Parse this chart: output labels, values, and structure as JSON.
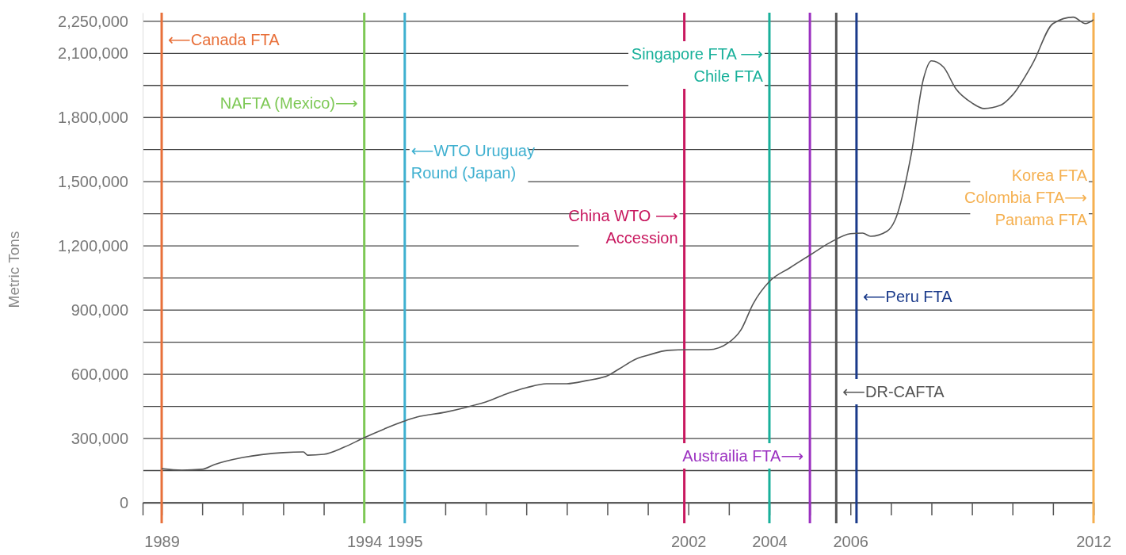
{
  "chart_data": {
    "type": "line",
    "ylabel": "Metric Tons",
    "xlim": [
      1988.53,
      2012
    ],
    "xticks": [
      1989,
      {
        "value": 1990,
        "label": null
      },
      {
        "value": 1991,
        "label": null
      },
      {
        "value": 1992,
        "label": null
      },
      {
        "value": 1993,
        "label": null
      },
      1994,
      1995,
      {
        "value": 1996,
        "label": null
      },
      {
        "value": 1997,
        "label": null
      },
      {
        "value": 1998,
        "label": null
      },
      {
        "value": 1999,
        "label": null
      },
      {
        "value": 2000,
        "label": null
      },
      {
        "value": 2001,
        "label": null
      },
      2002,
      {
        "value": 2003,
        "label": null
      },
      2004,
      {
        "value": 2005,
        "label": null
      },
      2006,
      {
        "value": 2007,
        "label": null
      },
      {
        "value": 2008,
        "label": null
      },
      {
        "value": 2009,
        "label": null
      },
      {
        "value": 2010,
        "label": null
      },
      {
        "value": 2011,
        "label": null
      },
      2012
    ],
    "ylim": [
      0,
      2290000
    ],
    "yticks": [
      {
        "value": 0,
        "label": "0"
      },
      {
        "value": 150000,
        "label": null
      },
      {
        "value": 300000,
        "label": "300,000"
      },
      {
        "value": 450000,
        "label": null
      },
      {
        "value": 600000,
        "label": "600,000"
      },
      {
        "value": 750000,
        "label": null
      },
      {
        "value": 900000,
        "label": "900,000"
      },
      {
        "value": 1050000,
        "label": null
      },
      {
        "value": 1200000,
        "label": "1,200,000"
      },
      {
        "value": 1350000,
        "label": null
      },
      {
        "value": 1500000,
        "label": "1,500,000"
      },
      {
        "value": 1650000,
        "label": null
      },
      {
        "value": 1800000,
        "label": "1,800,000"
      },
      {
        "value": 1950000,
        "label": null
      },
      {
        "value": 2100000,
        "label": "2,100,000"
      },
      {
        "value": 2250000,
        "label": "2,250,000"
      }
    ],
    "grid": "y",
    "marker": "none",
    "line_style": "solid",
    "series": [
      {
        "color": "#555555",
        "x": [
          1989,
          1989.5,
          1990,
          1990.3,
          1991,
          1992,
          1992.5,
          1992.6,
          1993,
          1993.5,
          1994,
          1994.5,
          1995,
          1995.3,
          1996,
          1996.5,
          1997,
          1997.5,
          1998,
          1998.5,
          1999,
          1999.5,
          2000,
          2000.3,
          2000.7,
          2001,
          2001.5,
          2002,
          2002.5,
          2003,
          2003.3,
          2003.6,
          2004,
          2004.5,
          2005,
          2005.5,
          2006,
          2006.3,
          2006.5,
          2006.9,
          2007.1,
          2007.5,
          2007.8,
          2008,
          2008.3,
          2008.6,
          2009,
          2009.3,
          2009.7,
          2010,
          2010.5,
          2011,
          2011.5,
          2011.8,
          2012
        ],
        "values": [
          159000,
          152000,
          156000,
          178000,
          211000,
          234000,
          237000,
          222000,
          226000,
          259000,
          304000,
          345000,
          382000,
          400000,
          423000,
          445000,
          471000,
          508000,
          537000,
          556000,
          556000,
          571000,
          593000,
          626000,
          671000,
          689000,
          712000,
          715000,
          715000,
          749000,
          808000,
          930000,
          1034000,
          1097000,
          1157000,
          1216000,
          1257000,
          1260000,
          1245000,
          1268000,
          1320000,
          1627000,
          1979000,
          2065000,
          2035000,
          1935000,
          1868000,
          1842000,
          1857000,
          1905000,
          2053000,
          2239000,
          2269000,
          2239000,
          2257000
        ]
      }
    ],
    "ref_lines": [
      {
        "axis": "x",
        "value": 1989,
        "label": "⟵Canada FTA",
        "color": "#e8703a"
      },
      {
        "axis": "x",
        "value": 1994,
        "label": "NAFTA (Mexico)⟶",
        "color": "#7dc855"
      },
      {
        "axis": "x",
        "value": 1995,
        "label": "⟵WTO Uruguay\nRound (Japan)",
        "color": "#3fb0d0"
      },
      {
        "axis": "x",
        "value": 2001.9,
        "label": "China WTO ⟶\nAccession",
        "color": "#c8185f"
      },
      {
        "axis": "x",
        "value": 2004,
        "label": "Singapore FTA ⟶\nChile FTA",
        "color": "#18b09a"
      },
      {
        "axis": "x",
        "value": 2005,
        "label": "Austrailia FTA⟶",
        "color": "#9b30c0"
      },
      {
        "axis": "x",
        "value": 2005.65,
        "label": "⟵DR-CAFTA",
        "color": "#555555"
      },
      {
        "axis": "x",
        "value": 2006.15,
        "label": "⟵Peru FTA",
        "color": "#1a3a8a"
      },
      {
        "axis": "x",
        "value": 2012,
        "label": "Korea FTA\nColombia FTA⟶\nPanama FTA",
        "color": "#f5b050"
      }
    ]
  }
}
